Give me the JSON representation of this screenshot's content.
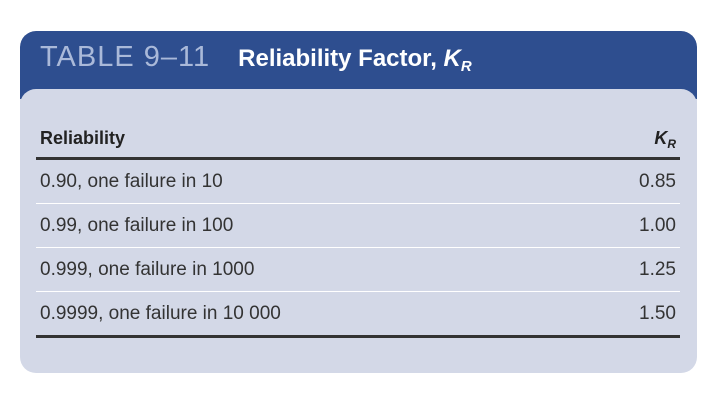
{
  "table": {
    "label": "TABLE 9–11",
    "title": "Reliability Factor,",
    "title_symbol": "K",
    "title_symbol_sub": "R",
    "columns": {
      "reliability": "Reliability",
      "kr_symbol": "K",
      "kr_sub": "R"
    },
    "rows": [
      {
        "reliability": "0.90, one failure in 10",
        "kr": "0.85"
      },
      {
        "reliability": "0.99, one failure in 100",
        "kr": "1.00"
      },
      {
        "reliability": "0.999, one failure in 1000",
        "kr": "1.25"
      },
      {
        "reliability": "0.9999, one failure in 10 000",
        "kr": "1.50"
      }
    ]
  },
  "colors": {
    "header_bg": "#2e4e8f",
    "label_text": "#aab9d9",
    "body_bg": "#d3d8e7"
  }
}
